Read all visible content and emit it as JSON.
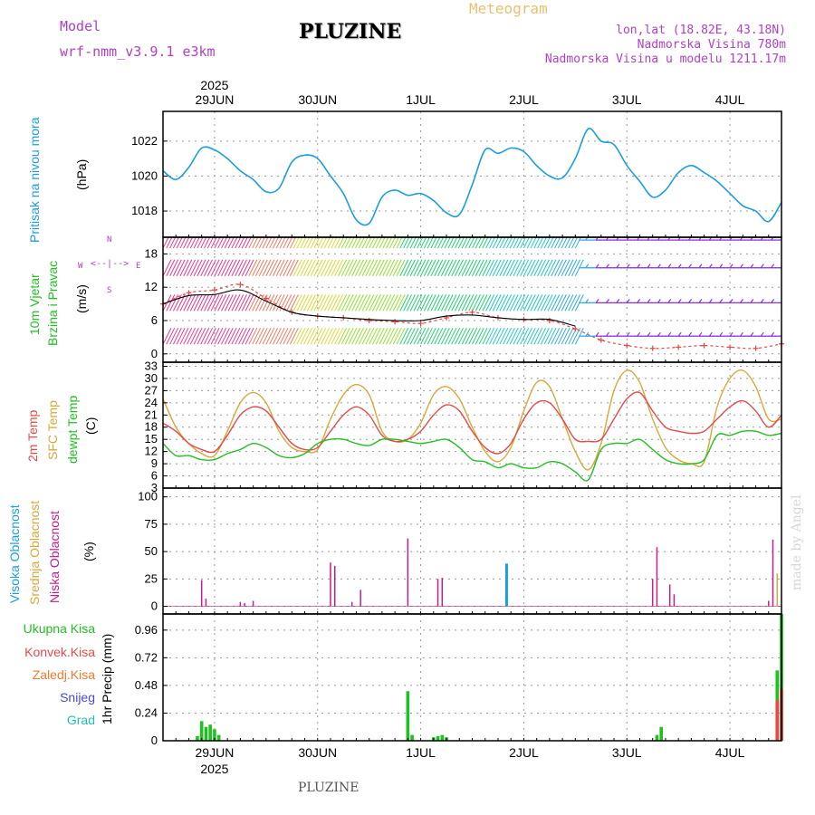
{
  "header": {
    "title": "PLUZINE",
    "subtitle": "Meteogram",
    "model_label": "Model",
    "model_name": "wrf-nmm_v3.9.1  e3km",
    "location": "lon,lat (18.82E, 43.18N)",
    "altitude": "Nadmorska Visina 780m",
    "model_altitude": "Nadmorska Visina u modelu 1211.17m",
    "footer": "PLUZINE",
    "credit": "made by Angel"
  },
  "colors": {
    "pressure": "#1a9ee0",
    "temp2m": "#e84848",
    "sfc": "#d8a838",
    "dew": "#20c020",
    "high_cloud": "#1a9ee0",
    "mid_cloud": "#d8a838",
    "low_cloud": "#c0208a",
    "purple": "#b040c8"
  },
  "chart_data": [
    {
      "type": "line",
      "title": "Pritisak na nivou mora",
      "ylabel": "(hPa)",
      "ylim": [
        1016.5,
        1023.7
      ],
      "yticks": [
        "1022",
        "1020",
        "1018"
      ],
      "x_range_hours": [
        0,
        144
      ],
      "day_labels_top": [
        "29JUN",
        "30JUN",
        "1JUL",
        "2JUL",
        "3JUL",
        "4JUL"
      ],
      "year_top": "2025",
      "day_tick_hours": [
        12,
        36,
        60,
        84,
        108,
        132
      ],
      "series": [
        {
          "name": "pressure",
          "x": [
            0,
            3,
            6,
            9,
            12,
            15,
            18,
            21,
            24,
            27,
            30,
            33,
            36,
            39,
            42,
            45,
            48,
            51,
            54,
            57,
            60,
            63,
            66,
            69,
            72,
            75,
            78,
            81,
            84,
            87,
            90,
            93,
            96,
            99,
            102,
            105,
            108,
            111,
            114,
            117,
            120,
            123,
            126,
            129,
            132,
            135,
            138,
            141,
            144
          ],
          "values": [
            1020.3,
            1019.8,
            1020.5,
            1021.6,
            1021.5,
            1021.0,
            1020.3,
            1019.8,
            1019.1,
            1019.3,
            1020.8,
            1021.2,
            1021.0,
            1020.0,
            1019.0,
            1017.5,
            1017.3,
            1018.8,
            1019.2,
            1018.9,
            1019.0,
            1018.6,
            1017.9,
            1017.8,
            1019.5,
            1021.5,
            1021.3,
            1021.6,
            1021.4,
            1020.6,
            1020.0,
            1019.9,
            1021.0,
            1022.7,
            1022.0,
            1021.8,
            1020.6,
            1019.7,
            1018.8,
            1019.2,
            1020.2,
            1020.6,
            1020.2,
            1019.7,
            1019.0,
            1018.3,
            1018.0,
            1017.4,
            1018.5
          ]
        }
      ]
    },
    {
      "type": "line",
      "title": "10m Vjetar Brzina i Pravac",
      "ylabel": "(m/s)",
      "ylim": [
        -1.5,
        21
      ],
      "yticks": [
        "18",
        "12",
        "6",
        "0"
      ],
      "compass": {
        "n": "N",
        "s": "S",
        "e": "E",
        "w": "W"
      },
      "series": [
        {
          "name": "wind_speed",
          "x": [
            0,
            6,
            12,
            18,
            24,
            30,
            36,
            42,
            48,
            54,
            60,
            66,
            72,
            78,
            84,
            90,
            96,
            102,
            108,
            114,
            120,
            126,
            132,
            138,
            144
          ],
          "values": [
            9,
            11,
            11.5,
            12.5,
            10,
            7.5,
            6.8,
            6.5,
            6,
            5.8,
            5.5,
            6.5,
            7.5,
            6.5,
            6.2,
            6,
            4.5,
            2.5,
            1.5,
            1,
            1.2,
            1.5,
            1.2,
            1,
            1.8
          ]
        },
        {
          "name": "wind_mean",
          "x": [
            0,
            6,
            12,
            18,
            24,
            30,
            36,
            42,
            48,
            54,
            60,
            66,
            72,
            78,
            84,
            90,
            96
          ],
          "values": [
            9,
            10.5,
            10.7,
            11.5,
            9.5,
            7.5,
            6.8,
            6.5,
            6.2,
            6,
            6,
            6.8,
            7,
            6.5,
            6.2,
            6.2,
            5
          ]
        }
      ]
    },
    {
      "type": "line",
      "title": "2m Temp / SFC Temp / dewpt Temp",
      "ylabel": "(C)",
      "ylim": [
        3,
        34
      ],
      "yticks": [
        "33",
        "30",
        "27",
        "24",
        "21",
        "18",
        "15",
        "12",
        "9",
        "6",
        "3"
      ],
      "legend": [
        "2m Temp",
        "SFC Temp",
        "dewpt Temp"
      ],
      "series": [
        {
          "name": "2m Temp",
          "x": [
            0,
            3,
            6,
            9,
            12,
            15,
            18,
            21,
            24,
            27,
            30,
            33,
            36,
            39,
            42,
            45,
            48,
            51,
            54,
            57,
            60,
            63,
            66,
            69,
            72,
            75,
            78,
            81,
            84,
            87,
            90,
            93,
            96,
            99,
            102,
            105,
            108,
            111,
            114,
            117,
            120,
            123,
            126,
            129,
            132,
            135,
            138,
            141,
            144
          ],
          "values": [
            19,
            17,
            14,
            12.5,
            12,
            16,
            21,
            23,
            22,
            18,
            14,
            12.5,
            13,
            17,
            21,
            23,
            21,
            16,
            14.5,
            15,
            17,
            21,
            23.5,
            22,
            17,
            13,
            11.5,
            14,
            20,
            24,
            24,
            20,
            15,
            14.5,
            15,
            20,
            25,
            26.5,
            22,
            18,
            17,
            16.5,
            17,
            20,
            23,
            24.5,
            22,
            18,
            21
          ]
        },
        {
          "name": "SFC Temp",
          "x": [
            0,
            3,
            6,
            9,
            12,
            15,
            18,
            21,
            24,
            27,
            30,
            33,
            36,
            39,
            42,
            45,
            48,
            51,
            54,
            57,
            60,
            63,
            66,
            69,
            72,
            75,
            78,
            81,
            84,
            87,
            90,
            93,
            96,
            99,
            102,
            105,
            108,
            111,
            114,
            117,
            120,
            123,
            126,
            129,
            132,
            135,
            138,
            141,
            144
          ],
          "values": [
            25,
            18,
            14,
            11.5,
            11,
            17,
            24,
            26.5,
            24,
            17,
            13,
            12,
            12.5,
            20,
            26,
            28.5,
            26,
            17,
            14.5,
            15,
            19,
            26,
            28,
            25,
            18,
            12,
            9.5,
            13,
            22,
            29,
            28,
            20,
            12,
            7.5,
            14,
            27,
            32,
            29,
            20,
            13,
            10,
            9,
            9.5,
            23,
            30,
            32,
            28,
            20,
            20
          ]
        },
        {
          "name": "dewpt Temp",
          "x": [
            0,
            3,
            6,
            9,
            12,
            15,
            18,
            21,
            24,
            27,
            30,
            33,
            36,
            39,
            42,
            45,
            48,
            51,
            54,
            57,
            60,
            63,
            66,
            69,
            72,
            75,
            78,
            81,
            84,
            87,
            90,
            93,
            96,
            99,
            102,
            105,
            108,
            111,
            114,
            117,
            120,
            123,
            126,
            129,
            132,
            135,
            138,
            141,
            144
          ],
          "values": [
            14,
            11,
            11,
            10,
            10,
            11.5,
            12.5,
            14,
            13,
            11,
            10.5,
            11.5,
            14,
            15,
            15,
            14,
            13.5,
            15,
            15,
            14.5,
            14,
            14.5,
            15,
            13,
            10,
            9.5,
            8,
            9,
            8,
            8,
            9.5,
            9,
            7,
            5,
            12.5,
            14,
            14,
            15,
            12.5,
            10,
            9,
            9,
            10,
            16,
            16,
            17,
            17,
            16,
            16.5
          ]
        }
      ]
    },
    {
      "type": "bar",
      "title": "Visoka / Srednja / Niska Oblacnost",
      "ylabel": "(%)",
      "ylim": [
        -7,
        108
      ],
      "yticks": [
        "100",
        "75",
        "50",
        "25",
        "0"
      ],
      "legend": [
        "Visoka Oblacnost",
        "Srednja Oblacnost",
        "Niska Oblacnost"
      ],
      "series": [
        {
          "name": "Niska Oblacnost",
          "x": [
            9,
            10,
            18,
            19,
            21,
            39,
            40,
            44,
            46,
            57,
            64,
            65,
            114,
            115,
            118,
            119,
            141,
            142
          ],
          "values": [
            24,
            7,
            4,
            3,
            5,
            40,
            37,
            4,
            15,
            62,
            25,
            26,
            25,
            54,
            20,
            11,
            5,
            61
          ]
        },
        {
          "name": "Srednja Oblacnost",
          "x": [
            143
          ],
          "values": [
            30
          ]
        },
        {
          "name": "Visoka Oblacnost",
          "x": [
            80
          ],
          "values": [
            39
          ]
        }
      ]
    },
    {
      "type": "bar",
      "title": "1hr Precip",
      "ylabel": "1hr Precip (mm)",
      "ylim": [
        0,
        1.1
      ],
      "yticks": [
        "0.96",
        "0.72",
        "0.48",
        "0.24",
        "0"
      ],
      "legend": [
        "Ukupna Kisa",
        "Konvek.Kisa",
        "Zaledj.Kisa",
        "Snijeg",
        "Grad"
      ],
      "day_labels_bottom": [
        "29JUN",
        "30JUN",
        "1JUL",
        "2JUL",
        "3JUL",
        "4JUL"
      ],
      "year_bottom": "2025",
      "series": [
        {
          "name": "Ukupna Kisa",
          "x": [
            8,
            9,
            10,
            11,
            12,
            13,
            57,
            58,
            63,
            64,
            65,
            66,
            115,
            116,
            143,
            144
          ],
          "values": [
            0.04,
            0.17,
            0.12,
            0.14,
            0.1,
            0.05,
            0.43,
            0.05,
            0.03,
            0.04,
            0.05,
            0.03,
            0.05,
            0.12,
            0.61,
            1.1
          ]
        },
        {
          "name": "Konvek.Kisa",
          "x": [
            143,
            144
          ],
          "values": [
            0.35,
            0.45
          ]
        }
      ]
    }
  ]
}
